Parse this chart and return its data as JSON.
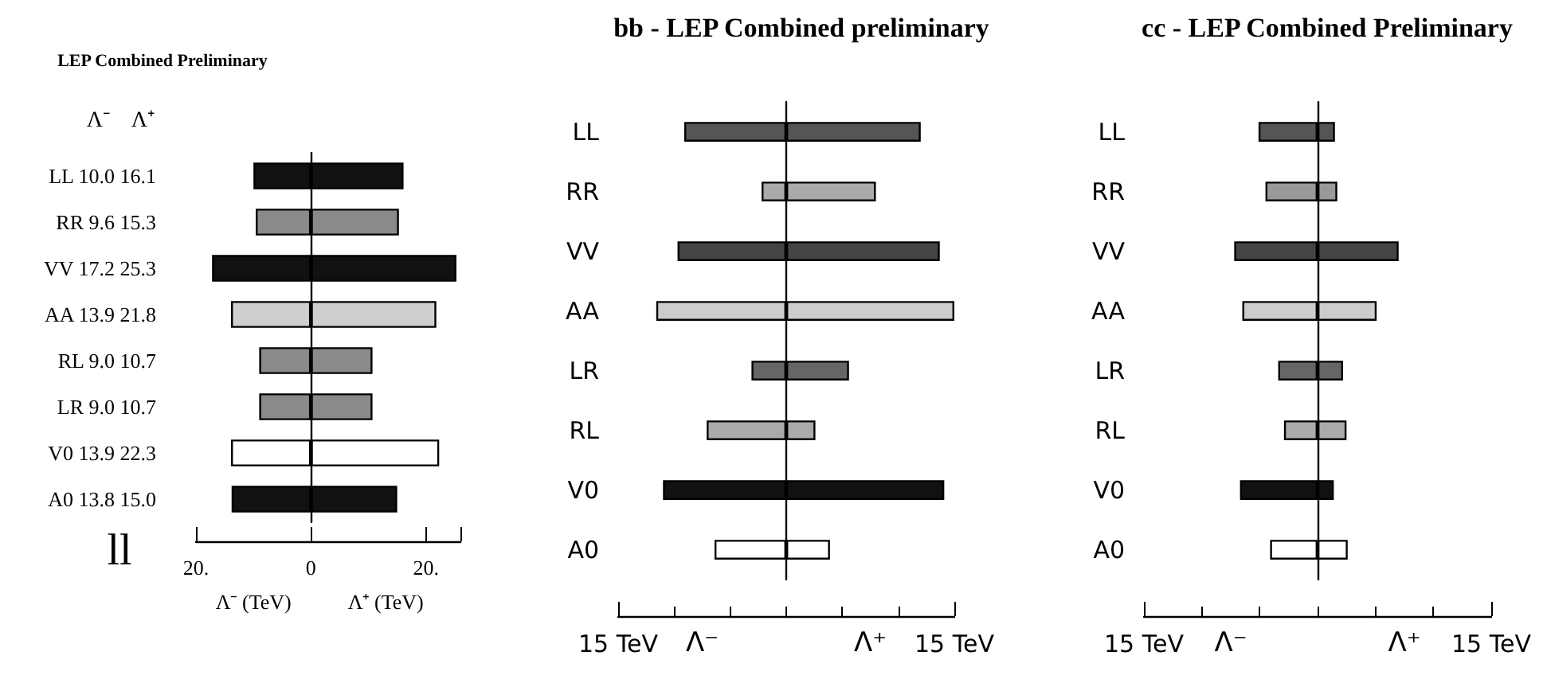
{
  "chart_data": [
    {
      "type": "bar",
      "orientation": "horizontal",
      "stacked": true,
      "title": "LEP Combined Preliminary",
      "categories": [
        "LL 10.0 16.1",
        "RR 9.6 15.3",
        "VV 17.2 25.3",
        "AA 13.9 21.8",
        "RL 9.0 10.7",
        "LR 9.0 10.7",
        "V0 13.9 22.3",
        "A0 13.8 15.0"
      ],
      "series": [
        {
          "values": [
            -10.0,
            -9.6,
            -17.2,
            -13.9,
            -9.0,
            -9.0,
            -13.9,
            -13.8
          ],
          "colors": [
            "#111111",
            "#8a8a8a",
            "#111111",
            "#cfcfcf",
            "#8a8a8a",
            "#8a8a8a",
            "#ffffff",
            "#111111"
          ]
        },
        {
          "values": [
            16.1,
            15.3,
            25.3,
            21.8,
            10.7,
            10.7,
            22.3,
            15.0
          ],
          "colors": [
            "#111111",
            "#8a8a8a",
            "#111111",
            "#cfcfcf",
            "#8a8a8a",
            "#8a8a8a",
            "#ffffff",
            "#111111"
          ]
        }
      ],
      "xlim": [
        -20,
        26
      ],
      "xticks": [
        {
          "value": -20,
          "label": "20."
        },
        0,
        {
          "value": 20,
          "label": "20."
        }
      ],
      "xlabel": [
        "Λ⁻ (TeV)",
        "Λ⁺ (TeV)"
      ],
      "annotations": [
        "Λ⁻",
        "Λ⁺",
        "ll"
      ]
    },
    {
      "type": "bar",
      "orientation": "horizontal",
      "stacked": true,
      "title": "bb - LEP Combined preliminary",
      "categories": [
        "LL",
        "RR",
        "VV",
        "AA",
        "LR",
        "RL",
        "V0",
        "A0"
      ],
      "series": [
        {
          "values": [
            -9.1,
            -2.2,
            -9.7,
            -11.6,
            -3.1,
            -7.1,
            -11.0,
            -6.4
          ],
          "colors": [
            "#555555",
            "#aaaaaa",
            "#444444",
            "#cccccc",
            "#666666",
            "#aaaaaa",
            "#111111",
            "#ffffff"
          ]
        },
        {
          "values": [
            12.0,
            8.0,
            13.7,
            15.0,
            5.6,
            2.6,
            14.1,
            3.9
          ],
          "colors": [
            "#555555",
            "#aaaaaa",
            "#444444",
            "#cccccc",
            "#666666",
            "#aaaaaa",
            "#111111",
            "#ffffff"
          ]
        }
      ],
      "xlim": [
        -15,
        15
      ],
      "xticks": [
        {
          "value": -15,
          "label": "15 TeV"
        },
        {
          "value": 15,
          "label": "15 TeV"
        }
      ],
      "xlabel": [
        "Λ⁻",
        "Λ⁺"
      ]
    },
    {
      "type": "bar",
      "orientation": "horizontal",
      "stacked": true,
      "title": "cc - LEP Combined Preliminary",
      "categories": [
        "LL",
        "RR",
        "VV",
        "AA",
        "LR",
        "RL",
        "V0",
        "A0"
      ],
      "series": [
        {
          "values": [
            -5.1,
            -4.5,
            -7.2,
            -6.5,
            -3.4,
            -2.9,
            -6.7,
            -4.1
          ],
          "colors": [
            "#555555",
            "#999999",
            "#444444",
            "#cccccc",
            "#666666",
            "#aaaaaa",
            "#111111",
            "#ffffff"
          ]
        },
        {
          "values": [
            1.5,
            1.7,
            7.0,
            5.1,
            2.2,
            2.5,
            1.4,
            2.6
          ],
          "colors": [
            "#555555",
            "#999999",
            "#444444",
            "#cccccc",
            "#666666",
            "#aaaaaa",
            "#111111",
            "#ffffff"
          ]
        }
      ],
      "xlim": [
        -15,
        15
      ],
      "xticks": [
        {
          "value": -15,
          "label": "15 TeV"
        },
        {
          "value": 15,
          "label": "15 TeV"
        }
      ],
      "xlabel": [
        "Λ⁻",
        "Λ⁺"
      ]
    }
  ]
}
